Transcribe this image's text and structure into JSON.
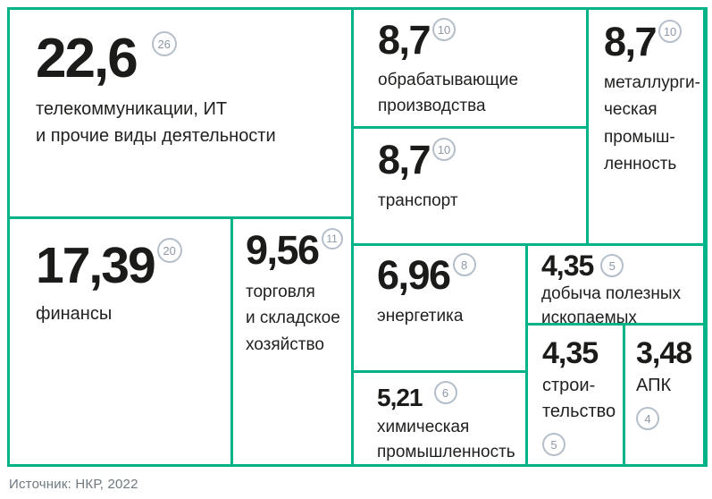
{
  "colors": {
    "grid_green": "#00b287",
    "number_text": "#1b1b19",
    "label_text": "#21211f",
    "badge_border": "#b5bfca",
    "badge_text": "#8e98a6",
    "source_text": "#6e7980",
    "background": "#ffffff"
  },
  "source": "Источник: НКР, 2022",
  "cells": [
    {
      "value": "22,6",
      "badge": "26",
      "label": "телекоммуникации, ИТ\nи прочие виды деятельности"
    },
    {
      "value": "8,7",
      "badge": "10",
      "label": "обрабатывающие\nпроизводства"
    },
    {
      "value": "8,7",
      "badge": "10",
      "label": "металлурги-\nческая\nпромыш-\nленность"
    },
    {
      "value": "8,7",
      "badge": "10",
      "label": "транспорт"
    },
    {
      "value": "17,39",
      "badge": "20",
      "label": "финансы"
    },
    {
      "value": "9,56",
      "badge": "11",
      "label": "торговля\nи складское\nхозяйство"
    },
    {
      "value": "6,96",
      "badge": "8",
      "label": "энергетика"
    },
    {
      "value": "4,35",
      "badge": "5",
      "label": "добыча полезных\nископаемых"
    },
    {
      "value": "5,21",
      "badge": "6",
      "label": "химическая\nпромышленность"
    },
    {
      "value": "4,35",
      "badge": "5",
      "label": "строи-\nтельство"
    },
    {
      "value": "3,48",
      "badge": "4",
      "label": "АПК"
    }
  ],
  "chart_data": {
    "type": "treemap",
    "items": [
      {
        "label": "телекоммуникации, ИТ и прочие виды деятельности",
        "value": 22.6,
        "count_badge": 26
      },
      {
        "label": "финансы",
        "value": 17.39,
        "count_badge": 20
      },
      {
        "label": "торговля и складское хозяйство",
        "value": 9.56,
        "count_badge": 11
      },
      {
        "label": "обрабатывающие производства",
        "value": 8.7,
        "count_badge": 10
      },
      {
        "label": "транспорт",
        "value": 8.7,
        "count_badge": 10
      },
      {
        "label": "металлургическая промышленность",
        "value": 8.7,
        "count_badge": 10
      },
      {
        "label": "энергетика",
        "value": 6.96,
        "count_badge": 8
      },
      {
        "label": "химическая промышленность",
        "value": 5.21,
        "count_badge": 6
      },
      {
        "label": "добыча полезных ископаемых",
        "value": 4.35,
        "count_badge": 5
      },
      {
        "label": "строительство",
        "value": 4.35,
        "count_badge": 5
      },
      {
        "label": "АПК",
        "value": 3.48,
        "count_badge": 4
      }
    ],
    "legend_position": "none",
    "grid": "green cell borders",
    "source": "Источник: НКР, 2022",
    "accent_color": "#00b287"
  }
}
